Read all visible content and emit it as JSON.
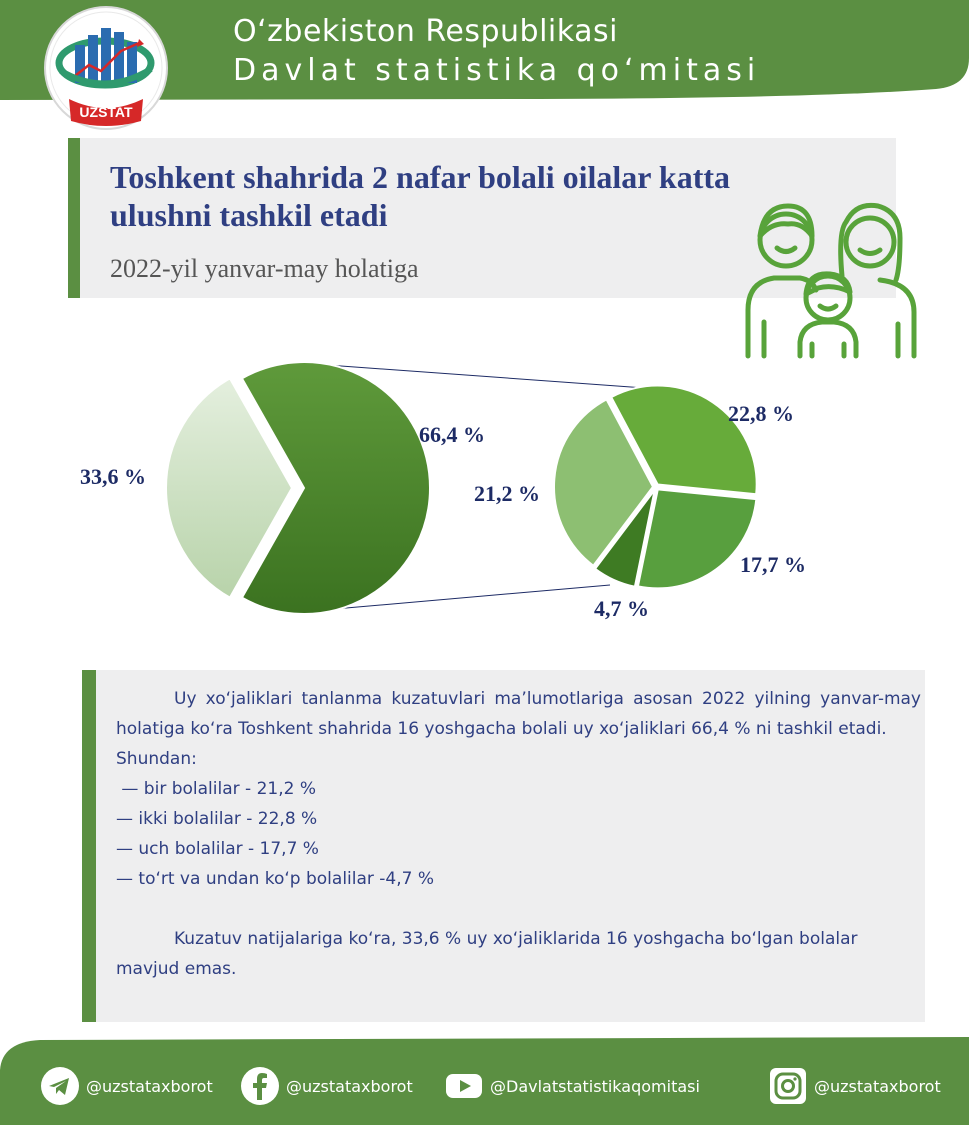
{
  "colors": {
    "green": "#5b8f42",
    "navy": "#2f3f82",
    "panel": "#eeeeef"
  },
  "header": {
    "logo_text": "UZSTAT",
    "org_line1": "O‘zbekiston Respublikasi",
    "org_line2": "Davlat statistika qo‘mitasi"
  },
  "title": "Toshkent shahrida 2 nafar bolali oilalar katta ulushni tashkil etadi",
  "subtitle": "2022-yil yanvar-may holatiga",
  "family_icon": "family-icon",
  "chart_data": {
    "type": "pie",
    "title": "",
    "unit": "%",
    "main": {
      "slices": [
        {
          "value": 66.4,
          "label": "66,4 %",
          "color": "#4e8a2c"
        },
        {
          "value": 33.6,
          "label": "33,6 %",
          "color": "#c9dfc0"
        }
      ]
    },
    "breakdown": {
      "slices": [
        {
          "value": 22.8,
          "label": "22,8 %",
          "color": "#67ab3a"
        },
        {
          "value": 17.7,
          "label": "17,7 %",
          "color": "#589f3e"
        },
        {
          "value": 4.7,
          "label": "4,7 %",
          "color": "#3e7b23"
        },
        {
          "value": 21.2,
          "label": "21,2 %",
          "color": "#8dbf72"
        }
      ]
    }
  },
  "info": {
    "paragraph1": "Uy xo‘jaliklari tanlanma kuzatuvlari ma’lumotlariga asosan 2022 yilning yanvar-may holatiga ko‘ra Toshkent shahrida 16 yoshgacha bolali uy xo‘jaliklari 66,4 % ni tashkil etadi.",
    "shundan": "Shundan:",
    "items": [
      " — bir bolalilar - 21,2 %",
      "— ikki bolalilar - 22,8 %",
      "— uch bolalilar - 17,7 %",
      "— to‘rt va undan ko‘p bolalilar -4,7 %"
    ],
    "paragraph2": "Kuzatuv natijalariga ko‘ra, 33,6 % uy xo‘jaliklarida 16 yoshgacha bo‘lgan bolalar mavjud emas."
  },
  "footer": {
    "telegram": {
      "icon": "telegram-icon",
      "handle": "@uzstataxborot"
    },
    "facebook": {
      "icon": "facebook-icon",
      "handle": "@uzstataxborot"
    },
    "youtube": {
      "icon": "youtube-icon",
      "handle": "@Davlatstatistikaqomitasi"
    },
    "instagram": {
      "icon": "instagram-icon",
      "handle": "@uzstataxborot"
    }
  }
}
